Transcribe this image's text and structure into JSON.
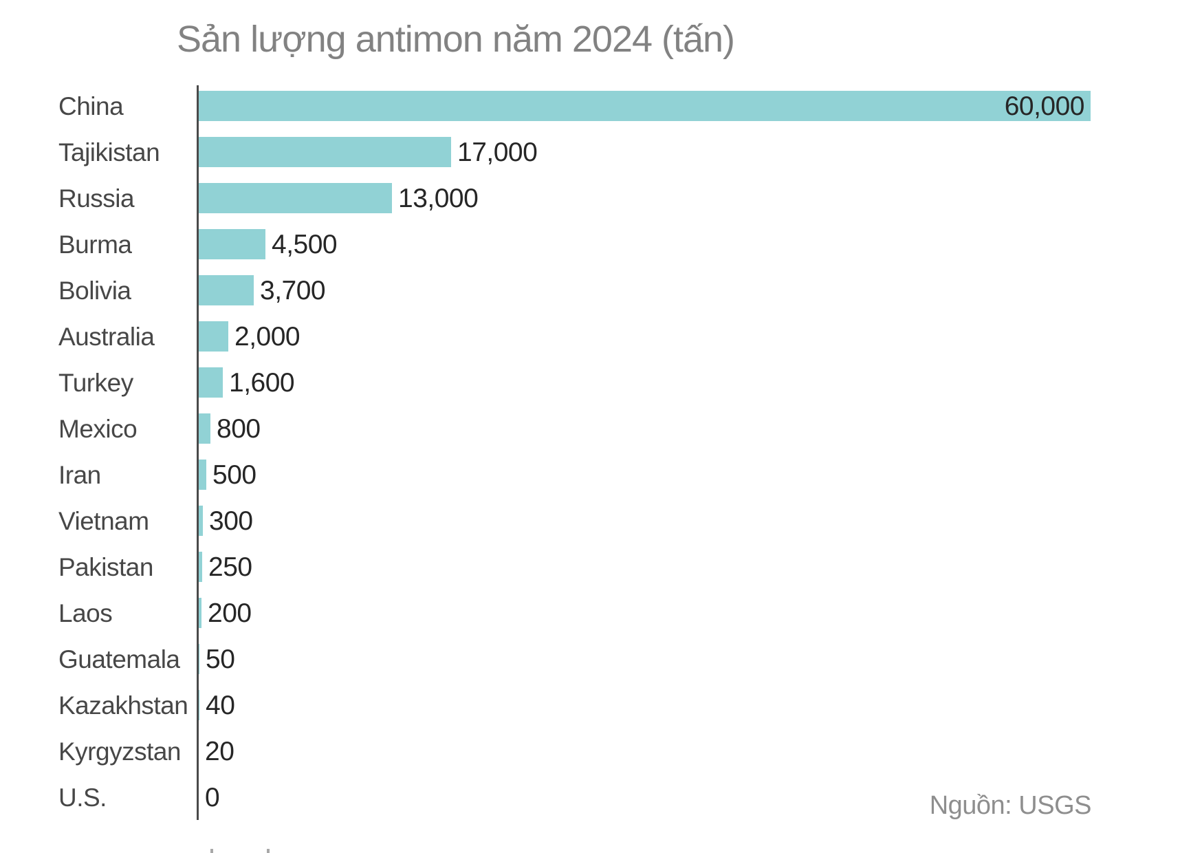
{
  "title": "Sản lượng antimon năm 2024 (tấn)",
  "source": "Nguồn: USGS",
  "colors": {
    "bar": "#91d2d5",
    "axis": "#4a4a4a",
    "title_text": "#828282",
    "source_text": "#8e8e8e",
    "category_text": "#474747",
    "value_text": "#262626",
    "background": "#ffffff"
  },
  "chart_data": {
    "type": "bar",
    "orientation": "horizontal",
    "title": "Sản lượng antimon năm 2024 (tấn)",
    "source": "Nguồn: USGS",
    "categories": [
      "China",
      "Tajikistan",
      "Russia",
      "Burma",
      "Bolivia",
      "Australia",
      "Turkey",
      "Mexico",
      "Iran",
      "Vietnam",
      "Pakistan",
      "Laos",
      "Guatemala",
      "Kazakhstan",
      "Kyrgyzstan",
      "U.S."
    ],
    "values": [
      60000,
      17000,
      13000,
      4500,
      3700,
      2000,
      1600,
      800,
      500,
      300,
      250,
      200,
      50,
      40,
      20,
      0
    ],
    "value_labels": [
      "60,000",
      "17,000",
      "13,000",
      "4,500",
      "3,700",
      "2,000",
      "1,600",
      "800",
      "500",
      "300",
      "250",
      "200",
      "50",
      "40",
      "20",
      "0"
    ],
    "xlim": [
      0,
      60000
    ],
    "grid": false,
    "legend": "none",
    "value_label_position": "outside-end, except largest bar inside-end"
  }
}
